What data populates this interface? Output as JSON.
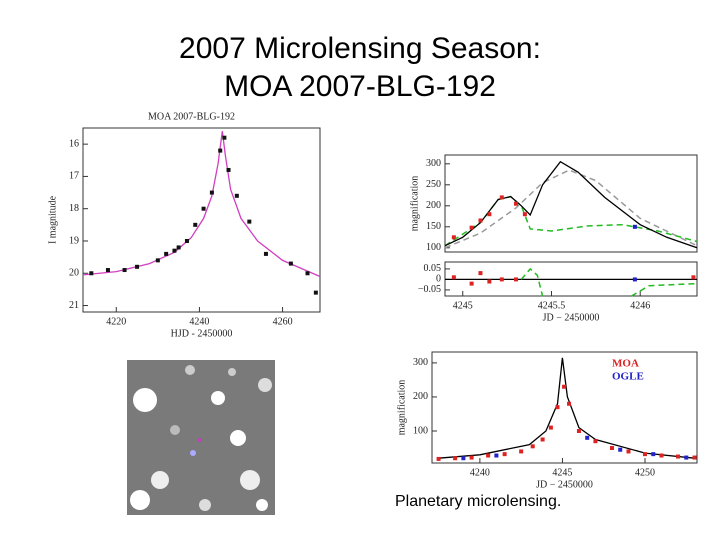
{
  "title": [
    "2007 Microlensing Season:",
    "MOA 2007-BLG-192"
  ],
  "caption": "Planetary microlensing.",
  "chart_data": [
    {
      "type": "line",
      "title": "MOA 2007-BLG-192",
      "xlabel": "HJD - 2450000",
      "ylabel": "I magnitude",
      "xlim": [
        4212,
        4269
      ],
      "ylim": [
        21.2,
        15.5
      ],
      "xticks": [
        4220,
        4240,
        4260
      ],
      "yticks": [
        16,
        17,
        18,
        19,
        20,
        21
      ],
      "series": [
        {
          "style": "line",
          "color": "#d040c0",
          "x": [
            4212,
            4220,
            4228,
            4234,
            4238,
            4241,
            4243,
            4244.5,
            4245.5,
            4246.3,
            4247.5,
            4250,
            4254,
            4260,
            4269
          ],
          "values": [
            20.05,
            19.95,
            19.7,
            19.35,
            18.9,
            18.3,
            17.6,
            16.6,
            15.6,
            16.4,
            17.4,
            18.3,
            19.0,
            19.6,
            20.1
          ]
        },
        {
          "style": "points",
          "color": "#111111",
          "x": [
            4214,
            4218,
            4222,
            4225,
            4230,
            4232,
            4234,
            4235,
            4237,
            4239,
            4241,
            4243,
            4245,
            4246,
            4247,
            4249,
            4252,
            4256,
            4262,
            4266,
            4268
          ],
          "values": [
            20.0,
            19.9,
            19.9,
            19.8,
            19.6,
            19.4,
            19.3,
            19.2,
            19.0,
            18.5,
            18.0,
            17.5,
            16.2,
            15.8,
            16.8,
            17.6,
            18.4,
            19.4,
            19.7,
            20.0,
            20.6
          ]
        }
      ]
    },
    {
      "type": "line",
      "ylabel": "magnification",
      "xlim": [
        4244.9,
        4246.32
      ],
      "ylim": [
        90,
        321
      ],
      "yticks": [
        100,
        150,
        200,
        250,
        300
      ],
      "series": [
        {
          "style": "dashed",
          "color": "#999999",
          "x": [
            4244.9,
            4245.1,
            4245.3,
            4245.45,
            4245.6,
            4245.75,
            4246.0,
            4246.32
          ],
          "values": [
            100,
            135,
            195,
            255,
            285,
            260,
            170,
            105
          ]
        },
        {
          "style": "dashed",
          "color": "#22bb22",
          "x": [
            4244.9,
            4245.1,
            4245.2,
            4245.27,
            4245.33,
            4245.38,
            4245.5,
            4245.7,
            4245.9,
            4246.1,
            4246.32
          ],
          "values": [
            105,
            160,
            215,
            222,
            200,
            145,
            140,
            152,
            155,
            140,
            115
          ]
        },
        {
          "style": "line",
          "color": "#000000",
          "x": [
            4244.9,
            4245.0,
            4245.1,
            4245.2,
            4245.27,
            4245.33,
            4245.38,
            4245.45,
            4245.55,
            4245.65,
            4245.8,
            4246.0,
            4246.15,
            4246.32
          ],
          "values": [
            105,
            125,
            160,
            215,
            222,
            200,
            178,
            250,
            305,
            280,
            220,
            155,
            125,
            100
          ]
        },
        {
          "style": "points",
          "color": "#dd2222",
          "x": [
            4244.95,
            4245.05,
            4245.1,
            4245.15,
            4245.22,
            4245.3,
            4245.35
          ],
          "values": [
            125,
            148,
            165,
            180,
            220,
            205,
            180
          ]
        },
        {
          "style": "points",
          "color": "#2222cc",
          "x": [
            4245.97
          ],
          "values": [
            150
          ]
        }
      ]
    },
    {
      "type": "line",
      "xlabel": "JD − 2450000",
      "xlim": [
        4244.9,
        4246.32
      ],
      "ylim": [
        -0.079,
        0.083
      ],
      "xticks": [
        4245,
        4245.5,
        4246
      ],
      "yticks": [
        0.05,
        0,
        {
          "value": -0.05,
          "label": "−0.05"
        }
      ],
      "series": [
        {
          "style": "line",
          "color": "#000000",
          "x": [
            4244.9,
            4246.32
          ],
          "values": [
            0,
            0
          ]
        },
        {
          "style": "dashed",
          "color": "#22bb22",
          "x": [
            4245.33,
            4245.38,
            4245.42,
            4245.45,
            null,
            4245.95,
            4246.05,
            4246.32
          ],
          "values": [
            0,
            0.05,
            0.02,
            -0.08,
            null,
            -0.08,
            -0.03,
            -0.02
          ]
        },
        {
          "style": "points",
          "color": "#dd2222",
          "x": [
            4244.95,
            4245.05,
            4245.1,
            4245.15,
            4245.22,
            4245.3,
            4246.3
          ],
          "values": [
            0.01,
            -0.02,
            0.03,
            -0.01,
            0,
            0,
            0.01
          ]
        },
        {
          "style": "points",
          "color": "#2222cc",
          "x": [
            4245.97
          ],
          "values": [
            0
          ]
        }
      ]
    },
    {
      "type": "line",
      "xlabel": "JD − 2450000",
      "ylabel": "magnification",
      "xlim": [
        4237.1,
        4253.15
      ],
      "ylim": [
        6,
        332
      ],
      "xticks": [
        4240,
        4245,
        4250
      ],
      "yticks": [
        100,
        200,
        300
      ],
      "series": [
        {
          "style": "line",
          "color": "#000000",
          "x": [
            4237.5,
            4240,
            4243,
            4244,
            4244.7,
            4245,
            4245.3,
            4246,
            4247,
            4250,
            4253
          ],
          "values": [
            20,
            30,
            60,
            100,
            180,
            315,
            200,
            110,
            75,
            35,
            20
          ]
        },
        {
          "style": "points",
          "name": "MOA",
          "color": "#dd2222",
          "x": [
            4237.5,
            4238.5,
            4239.5,
            4240.5,
            4241.5,
            4242.5,
            4243.2,
            4243.8,
            4244.3,
            4244.7,
            4245.1,
            4245.4,
            4246,
            4247,
            4248,
            4249,
            4250,
            4251,
            4252,
            4253
          ],
          "values": [
            18,
            20,
            22,
            28,
            32,
            40,
            55,
            75,
            110,
            170,
            230,
            180,
            100,
            70,
            50,
            40,
            32,
            28,
            25,
            22
          ]
        },
        {
          "style": "points",
          "name": "OGLE",
          "color": "#2222cc",
          "x": [
            4239,
            4241,
            4246.5,
            4248.5,
            4250.5,
            4252.5
          ],
          "values": [
            20,
            28,
            80,
            45,
            32,
            22
          ]
        }
      ]
    }
  ]
}
